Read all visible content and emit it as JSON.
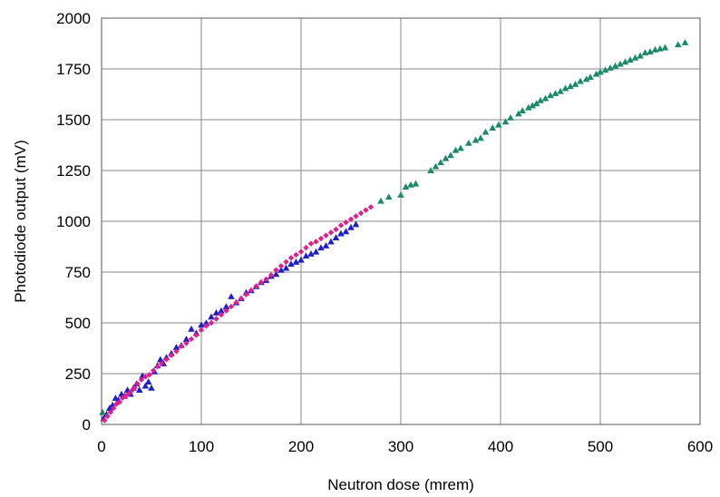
{
  "chart_data": {
    "type": "scatter",
    "title": "",
    "xlabel": "Neutron dose (mrem)",
    "ylabel": "Photodiode output (mV)",
    "xlim": [
      0,
      600
    ],
    "ylim": [
      0,
      2000
    ],
    "xticks": [
      0,
      100,
      200,
      300,
      400,
      500,
      600
    ],
    "yticks": [
      0,
      250,
      500,
      750,
      1000,
      1250,
      1500,
      1750,
      2000
    ],
    "grid": true,
    "legend": "none",
    "series": [
      {
        "marker": "triangle",
        "color": "#1f1fc8",
        "x": [
          2,
          5,
          8,
          11,
          14,
          17,
          20,
          23,
          26,
          29,
          32,
          35,
          38,
          41,
          44,
          47,
          50,
          53,
          56,
          59,
          62,
          65,
          70,
          75,
          80,
          85,
          90,
          95,
          100,
          105,
          110,
          115,
          120,
          125,
          130,
          135,
          140,
          145,
          150,
          155,
          160,
          165,
          170,
          175,
          180,
          185,
          190,
          195,
          200,
          205,
          210,
          215,
          220,
          225,
          230,
          235,
          240,
          245,
          250,
          255
        ],
        "y": [
          30,
          50,
          80,
          95,
          130,
          120,
          150,
          140,
          170,
          150,
          180,
          200,
          170,
          240,
          190,
          210,
          180,
          260,
          290,
          320,
          300,
          330,
          350,
          380,
          390,
          420,
          470,
          450,
          490,
          500,
          530,
          550,
          560,
          580,
          630,
          600,
          620,
          650,
          660,
          680,
          700,
          710,
          730,
          740,
          760,
          770,
          790,
          800,
          810,
          830,
          840,
          850,
          870,
          880,
          900,
          920,
          940,
          950,
          970,
          985
        ]
      },
      {
        "marker": "diamond",
        "color": "#e0208a",
        "x": [
          3,
          6,
          9,
          12,
          15,
          18,
          21,
          24,
          27,
          30,
          33,
          36,
          40,
          44,
          48,
          52,
          56,
          60,
          65,
          70,
          75,
          80,
          85,
          90,
          95,
          100,
          105,
          110,
          115,
          120,
          125,
          130,
          135,
          140,
          145,
          150,
          155,
          160,
          165,
          170,
          175,
          180,
          185,
          190,
          195,
          200,
          205,
          210,
          215,
          220,
          225,
          230,
          235,
          240,
          245,
          250,
          255,
          260,
          265,
          270
        ],
        "y": [
          20,
          40,
          60,
          80,
          100,
          110,
          130,
          140,
          150,
          165,
          180,
          200,
          220,
          235,
          245,
          265,
          285,
          300,
          320,
          340,
          360,
          385,
          400,
          420,
          440,
          465,
          485,
          500,
          520,
          540,
          560,
          580,
          600,
          620,
          640,
          660,
          680,
          700,
          715,
          735,
          760,
          780,
          800,
          820,
          835,
          850,
          870,
          890,
          900,
          915,
          930,
          945,
          960,
          980,
          995,
          1010,
          1025,
          1040,
          1055,
          1070
        ]
      },
      {
        "marker": "triangle",
        "color": "#1a8a6a",
        "x": [
          1,
          280,
          288,
          300,
          305,
          310,
          315,
          330,
          335,
          340,
          345,
          350,
          355,
          360,
          368,
          375,
          380,
          385,
          392,
          398,
          405,
          410,
          418,
          422,
          428,
          432,
          436,
          440,
          445,
          450,
          455,
          460,
          465,
          470,
          475,
          480,
          486,
          490,
          496,
          500,
          505,
          510,
          515,
          520,
          525,
          530,
          535,
          540,
          545,
          550,
          555,
          560,
          565,
          578,
          585
        ],
        "y": [
          60,
          1100,
          1120,
          1130,
          1170,
          1180,
          1185,
          1250,
          1270,
          1290,
          1310,
          1325,
          1350,
          1360,
          1385,
          1400,
          1410,
          1440,
          1460,
          1475,
          1490,
          1510,
          1530,
          1545,
          1560,
          1570,
          1580,
          1595,
          1605,
          1620,
          1630,
          1640,
          1655,
          1665,
          1675,
          1690,
          1700,
          1710,
          1725,
          1735,
          1745,
          1755,
          1765,
          1775,
          1785,
          1795,
          1805,
          1815,
          1830,
          1835,
          1845,
          1850,
          1855,
          1870,
          1880
        ]
      }
    ]
  }
}
